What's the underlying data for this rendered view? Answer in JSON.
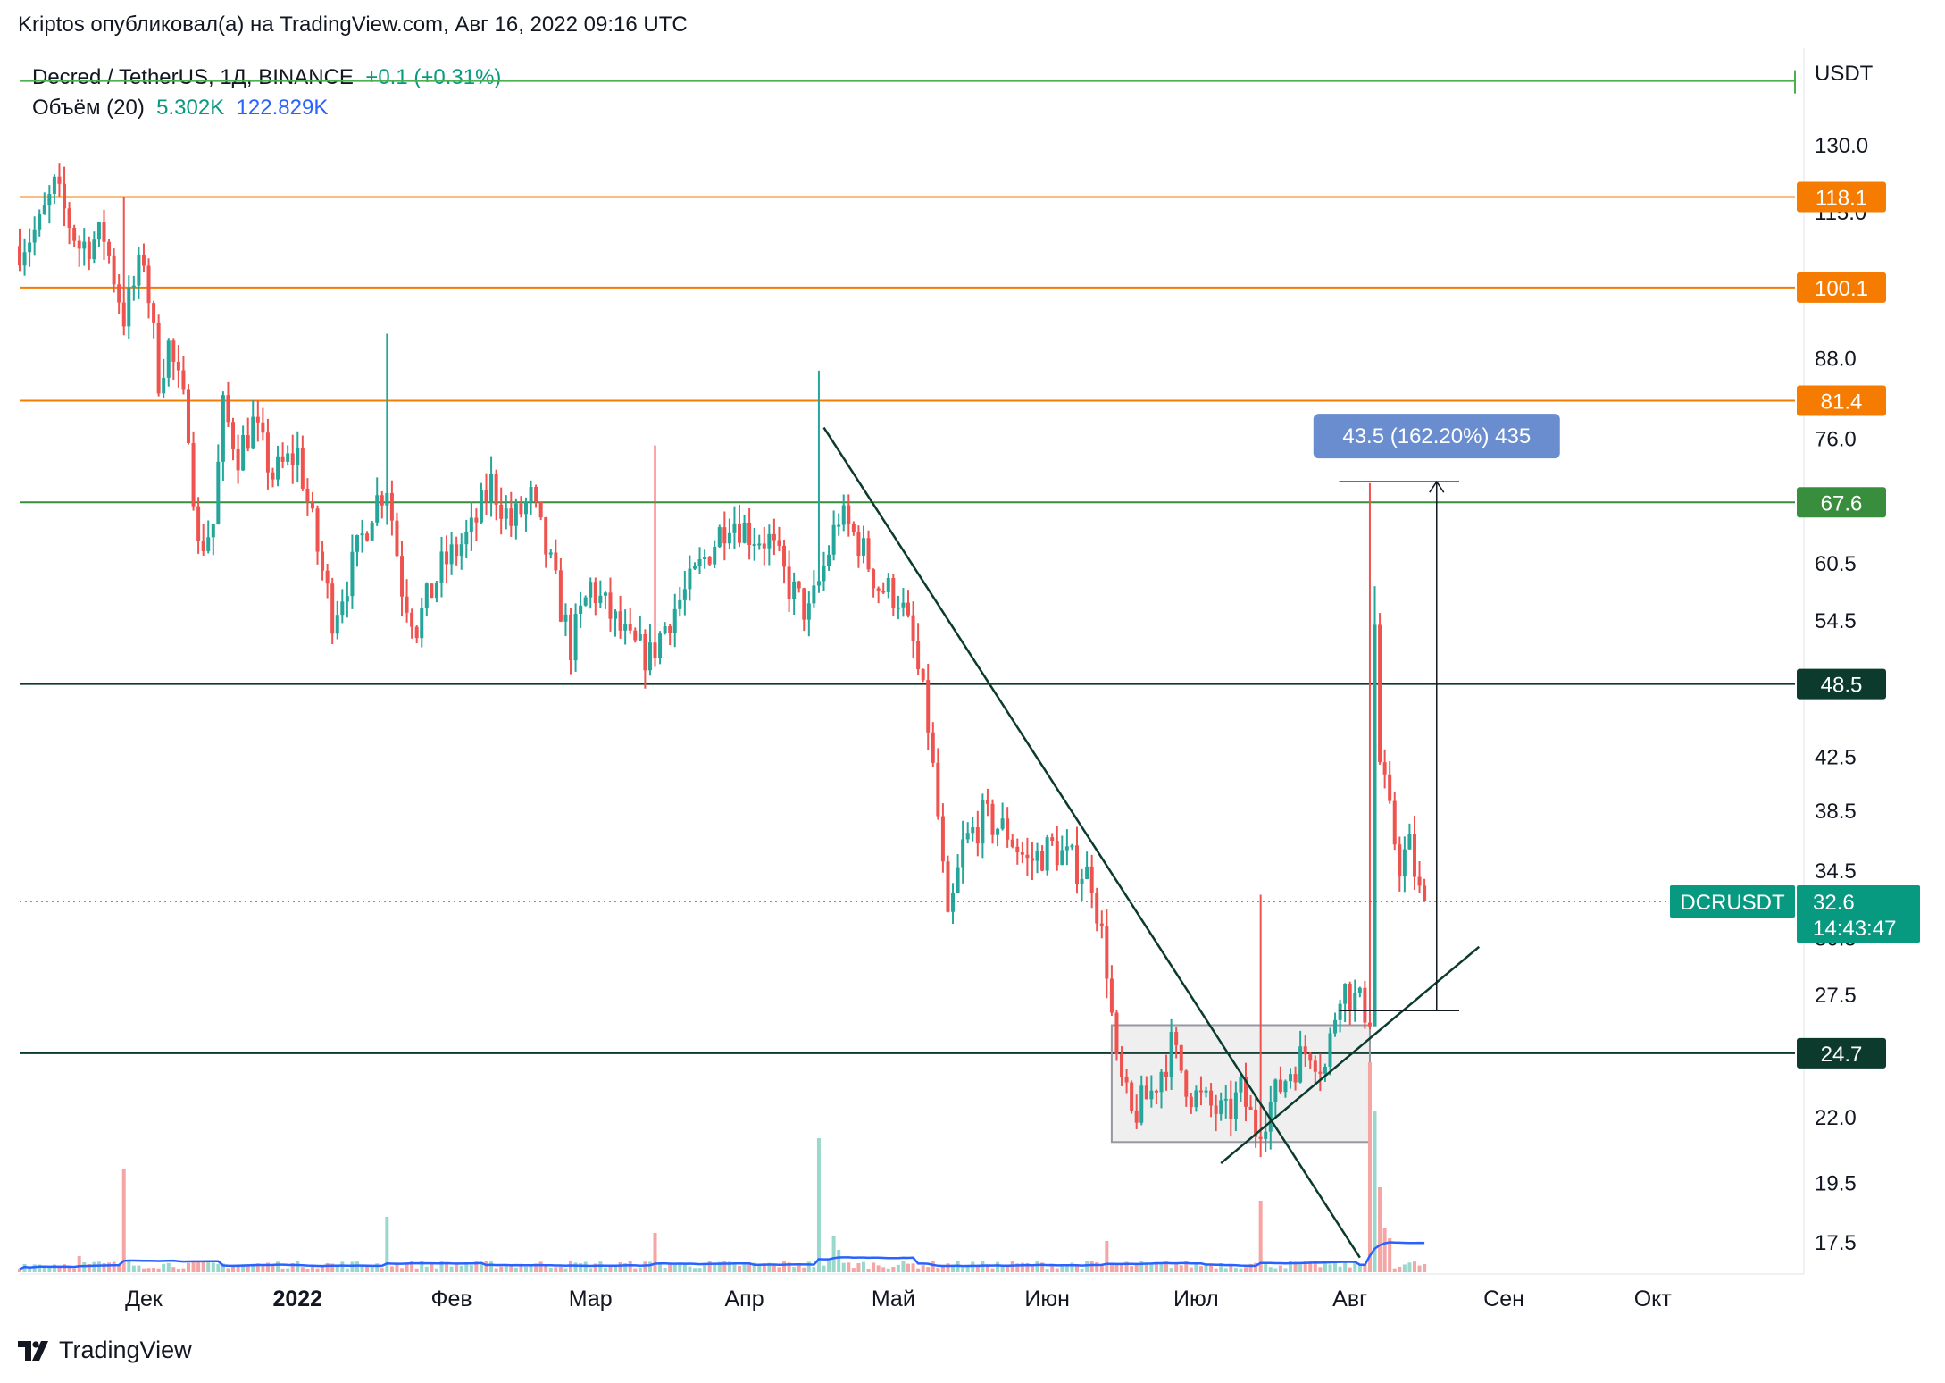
{
  "header": {
    "publisher": "Kriptos опубликовал(а) на TradingView.com, Авг 16, 2022 09:16 UTC",
    "symbol_line": "Decred / TetherUS, 1Д, BINANCE",
    "change": "+0.1 (+0.31%)",
    "volume_label": "Объём (20)",
    "volume_value": "5.302K",
    "volume_ma": "122.829K"
  },
  "footer": {
    "brand": "TradingView",
    "logo_icon": "tradingview-logo-icon"
  },
  "chart_data": {
    "type": "candlestick",
    "ticker": "DCRUSDT",
    "last_price": "32.6",
    "countdown": "14:43:47",
    "currency": "USDT",
    "y_scale": "log",
    "ylim": [
      16.5,
      152
    ],
    "y_ticks": [
      130.0,
      115.0,
      88.0,
      76.0,
      60.5,
      54.5,
      42.5,
      38.5,
      34.5,
      30.5,
      27.5,
      22.0,
      19.5,
      17.5
    ],
    "y_tick_labels": [
      "130.0",
      "115.0",
      "88.0",
      "76.0",
      "60.5",
      "54.5",
      "42.5",
      "38.5",
      "34.5",
      "30.5",
      "27.5",
      "22.0",
      "19.5",
      "17.5"
    ],
    "x_axis": {
      "start": "2021-11-06",
      "end": "2022-10-30",
      "labels": [
        {
          "date": "2021-12-01",
          "text": "Дек",
          "bold": false
        },
        {
          "date": "2022-01-01",
          "text": "2022",
          "bold": true
        },
        {
          "date": "2022-02-01",
          "text": "Фев",
          "bold": false
        },
        {
          "date": "2022-03-01",
          "text": "Мар",
          "bold": false
        },
        {
          "date": "2022-04-01",
          "text": "Апр",
          "bold": false
        },
        {
          "date": "2022-05-01",
          "text": "Май",
          "bold": false
        },
        {
          "date": "2022-06-01",
          "text": "Июн",
          "bold": false
        },
        {
          "date": "2022-07-01",
          "text": "Июл",
          "bold": false
        },
        {
          "date": "2022-08-01",
          "text": "Авг",
          "bold": false
        },
        {
          "date": "2022-09-01",
          "text": "Сен",
          "bold": false
        },
        {
          "date": "2022-10-01",
          "text": "Окт",
          "bold": false
        }
      ]
    },
    "horizontal_levels": [
      {
        "price": 118.1,
        "label": "118.1",
        "color": "#f57c00"
      },
      {
        "price": 100.1,
        "label": "100.1",
        "color": "#f57c00"
      },
      {
        "price": 81.4,
        "label": "81.4",
        "color": "#f57c00"
      },
      {
        "price": 67.6,
        "label": "67.6",
        "color": "#388e3c"
      },
      {
        "price": 48.5,
        "label": "48.5",
        "color": "#0c3b2e"
      },
      {
        "price": 24.7,
        "label": "24.7",
        "color": "#0c3b2e"
      }
    ],
    "top_level_line": {
      "price": 146,
      "color": "#4caf50"
    },
    "trendlines": [
      {
        "from": {
          "date": "2022-04-17",
          "price": 77.5
        },
        "to": {
          "date": "2022-08-03",
          "price": 17.0
        }
      },
      {
        "from": {
          "date": "2022-07-06",
          "price": 20.2
        },
        "to": {
          "date": "2022-08-27",
          "price": 30.0
        }
      }
    ],
    "rectangle": {
      "from": {
        "date": "2022-06-14",
        "price": 26.0
      },
      "to": {
        "date": "2022-08-05",
        "price": 21.0
      }
    },
    "measure": {
      "from": {
        "date": "2022-08-06",
        "price": 26.7
      },
      "to": {
        "date": "2022-08-23",
        "price": 70.2
      },
      "label": "43.5 (162.20%) 435"
    },
    "ohlc_anchor_closes": [
      [
        "2021-11-06",
        108
      ],
      [
        "2021-11-10",
        112
      ],
      [
        "2021-11-13",
        120
      ],
      [
        "2021-11-18",
        108
      ],
      [
        "2021-11-23",
        110
      ],
      [
        "2021-11-27",
        95
      ],
      [
        "2021-12-01",
        106
      ],
      [
        "2021-12-04",
        85
      ],
      [
        "2021-12-06",
        90
      ],
      [
        "2021-12-10",
        78
      ],
      [
        "2021-12-12",
        62
      ],
      [
        "2021-12-15",
        65
      ],
      [
        "2021-12-17",
        80
      ],
      [
        "2021-12-20",
        74
      ],
      [
        "2021-12-23",
        78
      ],
      [
        "2021-12-27",
        71
      ],
      [
        "2022-01-01",
        74
      ],
      [
        "2022-01-05",
        62
      ],
      [
        "2022-01-08",
        55
      ],
      [
        "2022-01-12",
        60
      ],
      [
        "2022-01-16",
        67
      ],
      [
        "2022-01-19",
        70
      ],
      [
        "2022-01-22",
        58
      ],
      [
        "2022-01-25",
        54
      ],
      [
        "2022-01-30",
        60
      ],
      [
        "2022-02-05",
        64
      ],
      [
        "2022-02-09",
        70
      ],
      [
        "2022-02-13",
        65
      ],
      [
        "2022-02-17",
        68
      ],
      [
        "2022-02-21",
        60
      ],
      [
        "2022-02-25",
        52
      ],
      [
        "2022-03-01",
        58
      ],
      [
        "2022-03-05",
        55
      ],
      [
        "2022-03-09",
        52
      ],
      [
        "2022-03-13",
        51
      ],
      [
        "2022-03-17",
        55
      ],
      [
        "2022-03-21",
        58
      ],
      [
        "2022-03-25",
        62
      ],
      [
        "2022-03-29",
        66
      ],
      [
        "2022-04-02",
        64
      ],
      [
        "2022-04-06",
        63
      ],
      [
        "2022-04-10",
        58
      ],
      [
        "2022-04-14",
        55
      ],
      [
        "2022-04-17",
        60
      ],
      [
        "2022-04-20",
        66
      ],
      [
        "2022-04-24",
        63
      ],
      [
        "2022-04-28",
        58
      ],
      [
        "2022-05-02",
        57
      ],
      [
        "2022-05-05",
        52
      ],
      [
        "2022-05-08",
        45
      ],
      [
        "2022-05-10",
        38
      ],
      [
        "2022-05-12",
        31
      ],
      [
        "2022-05-15",
        36
      ],
      [
        "2022-05-19",
        38
      ],
      [
        "2022-05-24",
        37
      ],
      [
        "2022-05-28",
        35
      ],
      [
        "2022-06-02",
        36
      ],
      [
        "2022-06-06",
        35
      ],
      [
        "2022-06-10",
        34
      ],
      [
        "2022-06-13",
        29
      ],
      [
        "2022-06-15",
        24
      ],
      [
        "2022-06-18",
        22
      ],
      [
        "2022-06-22",
        23
      ],
      [
        "2022-06-26",
        25
      ],
      [
        "2022-06-30",
        23
      ],
      [
        "2022-07-03",
        22.5
      ],
      [
        "2022-07-07",
        22
      ],
      [
        "2022-07-10",
        23
      ],
      [
        "2022-07-13",
        21.5
      ],
      [
        "2022-07-16",
        22.5
      ],
      [
        "2022-07-20",
        24
      ],
      [
        "2022-07-24",
        25
      ],
      [
        "2022-07-27",
        24
      ],
      [
        "2022-07-30",
        28
      ],
      [
        "2022-08-03",
        27
      ],
      [
        "2022-08-05",
        26.5
      ],
      [
        "2022-08-06",
        54
      ],
      [
        "2022-08-07",
        42
      ],
      [
        "2022-08-09",
        38
      ],
      [
        "2022-08-11",
        35
      ],
      [
        "2022-08-13",
        36
      ],
      [
        "2022-08-15",
        33
      ],
      [
        "2022-08-16",
        32.6
      ]
    ]
  },
  "colors": {
    "up": "#26a69a",
    "down": "#ef5350",
    "vol_up": "#9ad8cd",
    "vol_down": "#f4a5a4",
    "vol_ma": "#2962ff",
    "last_price_tag": "#089981"
  }
}
